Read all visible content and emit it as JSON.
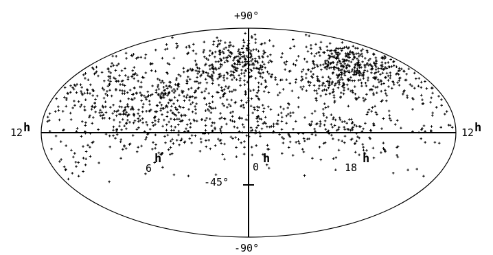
{
  "chart_data": {
    "type": "scatter",
    "projection": "mollweide-like ellipse",
    "title": "",
    "xlabel": "",
    "ylabel": "",
    "colors": {
      "points": "#000000",
      "frame": "#000000",
      "background": "#ffffff"
    },
    "lon_range_hours": [
      -6,
      30
    ],
    "lat_range_deg": [
      -90,
      90
    ],
    "labels": {
      "top": "+90°",
      "bottom": "-90°",
      "minus45": "-45°",
      "left_num": "12",
      "right_num": "12",
      "ra6_num": "6",
      "ra0_num": "0",
      "ra18_num": "18",
      "hour_sup": "h"
    },
    "tick_marks": [
      {
        "type": "lat",
        "dec_deg": -45
      }
    ],
    "clusters": [
      {
        "ra_h": 5.4,
        "dec_deg": 30,
        "sra": 1.8,
        "sdec": 15,
        "n": 220
      },
      {
        "ra_h": 2.5,
        "dec_deg": 55,
        "sra": 1.4,
        "sdec": 12,
        "n": 140
      },
      {
        "ra_h": 0.0,
        "dec_deg": 62,
        "sra": 1.0,
        "sdec": 8,
        "n": 90
      },
      {
        "ra_h": 15.8,
        "dec_deg": 60,
        "sra": 1.8,
        "sdec": 8,
        "n": 260
      },
      {
        "ra_h": 18.2,
        "dec_deg": 45,
        "sra": 1.4,
        "sdec": 9,
        "n": 130
      },
      {
        "ra_h": 12.3,
        "dec_deg": 42,
        "sra": 1.5,
        "sdec": 20,
        "n": 70
      },
      {
        "ra_h": 9.5,
        "dec_deg": 40,
        "sra": 1.2,
        "sdec": 15,
        "n": 60
      },
      {
        "ra_h": 23.8,
        "dec_deg": 30,
        "sra": 1.2,
        "sdec": 18,
        "n": 70
      },
      {
        "ra_h": 8.8,
        "dec_deg": 10,
        "sra": 1.6,
        "sdec": 12,
        "n": 60
      },
      {
        "ra_h": 18.5,
        "dec_deg": 5,
        "sra": 1.0,
        "sdec": 6,
        "n": 40
      },
      {
        "ra_h": 0.5,
        "dec_deg": 5,
        "sra": 2.0,
        "sdec": 8,
        "n": 55
      },
      {
        "ra_h": 4.2,
        "dec_deg": -6,
        "sra": 2.5,
        "sdec": 8,
        "n": 45
      },
      {
        "ra_h": 21.0,
        "dec_deg": -8,
        "sra": 2.2,
        "sdec": 9,
        "n": 40
      },
      {
        "ra_h": 10.5,
        "dec_deg": -22,
        "sra": 0.8,
        "sdec": 10,
        "n": 18
      },
      {
        "ra_h": 16.8,
        "dec_deg": -14,
        "sra": 1.2,
        "sdec": 6,
        "n": 18
      },
      {
        "ra_h": 3.0,
        "dec_deg": 70,
        "sra": 3.0,
        "sdec": 6,
        "n": 30
      }
    ],
    "uniform_north": {
      "n": 380,
      "dec_min": 0,
      "dec_max": 88
    },
    "uniform_south": {
      "n": 70,
      "dec_min": -40,
      "dec_max": 0
    },
    "seed": 20240611
  }
}
